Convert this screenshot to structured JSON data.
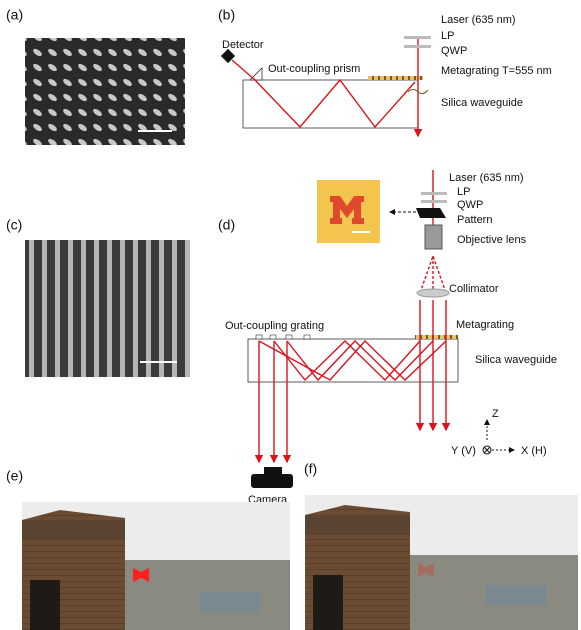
{
  "panel_labels": {
    "a": "(a)",
    "b": "(b)",
    "c": "(c)",
    "d": "(d)",
    "e": "(e)",
    "f": "(f)"
  },
  "panel_b": {
    "detector": "Detector",
    "prism": "Out-coupling prism",
    "laser": "Laser (635 nm)",
    "lp": "LP",
    "qwp": "QWP",
    "metagrating": "Metagrating T=555 nm",
    "waveguide": "Silica waveguide"
  },
  "panel_d": {
    "laser": "Laser (635 nm)",
    "lp": "LP",
    "qwp": "QWP",
    "pattern": "Pattern",
    "objective": "Objective lens",
    "collimator": "Collimator",
    "metagrating": "Metagrating",
    "outcoupling": "Out-coupling grating",
    "waveguide": "Silica waveguide",
    "camera": "Camera"
  },
  "axes": {
    "z": "Z",
    "y": "Y (V)",
    "x": "X (H)"
  }
}
